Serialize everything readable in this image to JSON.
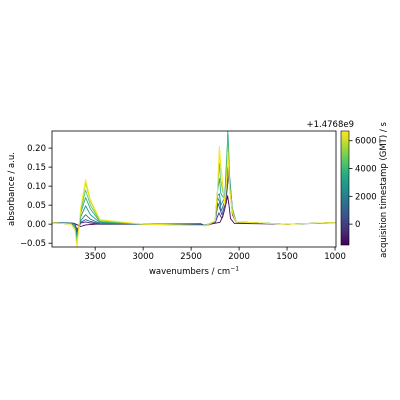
{
  "chart_data": {
    "type": "line",
    "xlabel": "wavenumbers / cm",
    "xlabel_superscript": "−1",
    "ylabel": "absorbance / a.u.",
    "xlim": [
      3950,
      990
    ],
    "ylim": [
      -0.06,
      0.245
    ],
    "x_ticks": [
      3500,
      3000,
      2500,
      2000,
      1500,
      1000
    ],
    "y_ticks": [
      -0.05,
      0.0,
      0.05,
      0.1,
      0.15,
      0.2
    ],
    "x_tick_labels": [
      "3500",
      "3000",
      "2500",
      "2000",
      "1500",
      "1000"
    ],
    "y_tick_labels": [
      "−0.05",
      "0.00",
      "0.05",
      "0.10",
      "0.15",
      "0.20"
    ],
    "grid": false,
    "series": [
      {
        "color": "#440154",
        "points": [
          [
            3950,
            0.003
          ],
          [
            3750,
            0.002
          ],
          [
            3700,
            0.0
          ],
          [
            3650,
            -0.006
          ],
          [
            3600,
            -0.002
          ],
          [
            3500,
            0.0
          ],
          [
            3000,
            0.0
          ],
          [
            2400,
            0.001
          ],
          [
            2350,
            -0.004
          ],
          [
            2300,
            0.0
          ],
          [
            2200,
            0.005
          ],
          [
            2170,
            0.02
          ],
          [
            2140,
            0.05
          ],
          [
            2120,
            0.075
          ],
          [
            2105,
            0.05
          ],
          [
            2090,
            0.015
          ],
          [
            2050,
            0.002
          ],
          [
            1500,
            0.0
          ],
          [
            1050,
            0.003
          ],
          [
            990,
            0.003
          ]
        ]
      },
      {
        "color": "#472d7b",
        "points": [
          [
            3950,
            0.004
          ],
          [
            3750,
            0.003
          ],
          [
            3710,
            0.002
          ],
          [
            3690,
            -0.015
          ],
          [
            3650,
            0.003
          ],
          [
            3600,
            0.006
          ],
          [
            3550,
            0.003
          ],
          [
            3450,
            0.0
          ],
          [
            3000,
            0.0
          ],
          [
            2350,
            -0.002
          ],
          [
            2250,
            0.003
          ],
          [
            2210,
            0.03
          ],
          [
            2180,
            0.015
          ],
          [
            2150,
            0.04
          ],
          [
            2125,
            0.09
          ],
          [
            2110,
            0.13
          ],
          [
            2095,
            0.09
          ],
          [
            2070,
            0.025
          ],
          [
            2030,
            0.005
          ],
          [
            1500,
            0.0
          ],
          [
            1050,
            0.004
          ],
          [
            990,
            0.003
          ]
        ]
      },
      {
        "color": "#3b528b",
        "points": [
          [
            3950,
            0.004
          ],
          [
            3750,
            0.003
          ],
          [
            3710,
            0.0
          ],
          [
            3690,
            -0.02
          ],
          [
            3650,
            0.005
          ],
          [
            3600,
            0.012
          ],
          [
            3550,
            0.007
          ],
          [
            3450,
            0.001
          ],
          [
            3000,
            0.0
          ],
          [
            2350,
            -0.002
          ],
          [
            2250,
            0.005
          ],
          [
            2220,
            0.055
          ],
          [
            2200,
            0.04
          ],
          [
            2180,
            0.025
          ],
          [
            2150,
            0.05
          ],
          [
            2130,
            0.1
          ],
          [
            2115,
            0.15
          ],
          [
            2100,
            0.1
          ],
          [
            2070,
            0.03
          ],
          [
            2030,
            0.006
          ],
          [
            1500,
            0.0
          ],
          [
            1050,
            0.004
          ],
          [
            990,
            0.003
          ]
        ]
      },
      {
        "color": "#2c728e",
        "points": [
          [
            3950,
            0.004
          ],
          [
            3750,
            0.003
          ],
          [
            3710,
            0.0
          ],
          [
            3690,
            -0.028
          ],
          [
            3650,
            0.01
          ],
          [
            3600,
            0.025
          ],
          [
            3550,
            0.013
          ],
          [
            3450,
            0.002
          ],
          [
            3000,
            0.0
          ],
          [
            2350,
            -0.003
          ],
          [
            2250,
            0.007
          ],
          [
            2225,
            0.07
          ],
          [
            2205,
            0.06
          ],
          [
            2185,
            0.035
          ],
          [
            2150,
            0.06
          ],
          [
            2130,
            0.14
          ],
          [
            2115,
            0.2
          ],
          [
            2100,
            0.12
          ],
          [
            2070,
            0.035
          ],
          [
            2030,
            0.006
          ],
          [
            1500,
            0.0
          ],
          [
            1050,
            0.004
          ],
          [
            990,
            0.003
          ]
        ]
      },
      {
        "color": "#21918c",
        "points": [
          [
            3950,
            0.004
          ],
          [
            3750,
            0.002
          ],
          [
            3710,
            -0.005
          ],
          [
            3690,
            -0.038
          ],
          [
            3650,
            0.02
          ],
          [
            3600,
            0.048
          ],
          [
            3550,
            0.025
          ],
          [
            3450,
            0.004
          ],
          [
            3000,
            0.0
          ],
          [
            2350,
            -0.003
          ],
          [
            2250,
            0.008
          ],
          [
            2225,
            0.075
          ],
          [
            2205,
            0.08
          ],
          [
            2190,
            0.05
          ],
          [
            2150,
            0.07
          ],
          [
            2130,
            0.17
          ],
          [
            2115,
            0.235
          ],
          [
            2100,
            0.13
          ],
          [
            2070,
            0.04
          ],
          [
            2030,
            0.006
          ],
          [
            1500,
            0.0
          ],
          [
            1050,
            0.004
          ],
          [
            990,
            0.003
          ]
        ]
      },
      {
        "color": "#28ae80",
        "points": [
          [
            3950,
            0.004
          ],
          [
            3750,
            0.0
          ],
          [
            3710,
            -0.01
          ],
          [
            3690,
            -0.045
          ],
          [
            3650,
            0.03
          ],
          [
            3600,
            0.07
          ],
          [
            3550,
            0.04
          ],
          [
            3450,
            0.006
          ],
          [
            3000,
            0.0
          ],
          [
            2350,
            -0.003
          ],
          [
            2250,
            0.008
          ],
          [
            2225,
            0.085
          ],
          [
            2205,
            0.12
          ],
          [
            2190,
            0.08
          ],
          [
            2150,
            0.065
          ],
          [
            2130,
            0.15
          ],
          [
            2118,
            0.245
          ],
          [
            2100,
            0.12
          ],
          [
            2070,
            0.04
          ],
          [
            2030,
            0.006
          ],
          [
            1500,
            0.0
          ],
          [
            1050,
            0.004
          ],
          [
            990,
            0.003
          ]
        ]
      },
      {
        "color": "#5ec962",
        "points": [
          [
            3950,
            0.004
          ],
          [
            3750,
            0.0
          ],
          [
            3710,
            -0.012
          ],
          [
            3690,
            -0.05
          ],
          [
            3650,
            0.035
          ],
          [
            3600,
            0.09
          ],
          [
            3550,
            0.05
          ],
          [
            3450,
            0.008
          ],
          [
            3000,
            0.0
          ],
          [
            2350,
            -0.004
          ],
          [
            2250,
            0.008
          ],
          [
            2225,
            0.09
          ],
          [
            2205,
            0.16
          ],
          [
            2195,
            0.12
          ],
          [
            2150,
            0.06
          ],
          [
            2130,
            0.13
          ],
          [
            2118,
            0.225
          ],
          [
            2100,
            0.11
          ],
          [
            2070,
            0.035
          ],
          [
            2030,
            0.006
          ],
          [
            1500,
            0.0
          ],
          [
            1050,
            0.004
          ],
          [
            990,
            0.003
          ]
        ]
      },
      {
        "color": "#addc30",
        "points": [
          [
            3950,
            0.004
          ],
          [
            3750,
            0.0
          ],
          [
            3710,
            -0.015
          ],
          [
            3690,
            -0.057
          ],
          [
            3650,
            0.04
          ],
          [
            3600,
            0.108
          ],
          [
            3550,
            0.06
          ],
          [
            3450,
            0.01
          ],
          [
            3000,
            0.0
          ],
          [
            2350,
            -0.004
          ],
          [
            2250,
            0.008
          ],
          [
            2225,
            0.09
          ],
          [
            2205,
            0.2
          ],
          [
            2195,
            0.16
          ],
          [
            2150,
            0.055
          ],
          [
            2130,
            0.12
          ],
          [
            2118,
            0.2
          ],
          [
            2100,
            0.1
          ],
          [
            2070,
            0.03
          ],
          [
            2030,
            0.006
          ],
          [
            1500,
            0.0
          ],
          [
            1050,
            0.004
          ],
          [
            990,
            0.003
          ]
        ]
      },
      {
        "color": "#fde725",
        "points": [
          [
            3950,
            0.004
          ],
          [
            3750,
            0.0
          ],
          [
            3710,
            -0.015
          ],
          [
            3690,
            -0.06
          ],
          [
            3650,
            0.045
          ],
          [
            3600,
            0.118
          ],
          [
            3550,
            0.065
          ],
          [
            3450,
            0.012
          ],
          [
            3000,
            0.0
          ],
          [
            2350,
            -0.004
          ],
          [
            2250,
            0.008
          ],
          [
            2225,
            0.085
          ],
          [
            2205,
            0.205
          ],
          [
            2195,
            0.17
          ],
          [
            2150,
            0.05
          ],
          [
            2130,
            0.11
          ],
          [
            2118,
            0.19
          ],
          [
            2100,
            0.095
          ],
          [
            2070,
            0.03
          ],
          [
            2030,
            0.006
          ],
          [
            1500,
            0.0
          ],
          [
            1050,
            0.004
          ],
          [
            990,
            0.003
          ]
        ]
      }
    ],
    "colorbar": {
      "label": "acquisition timestamp (GMT) / s",
      "offset_label": "+1.4768e9",
      "range": [
        -1500,
        6700
      ],
      "ticks": [
        0,
        2000,
        4000,
        6000
      ],
      "tick_labels": [
        "0",
        "2000",
        "4000",
        "6000"
      ],
      "colormap": [
        "#440154",
        "#472d7b",
        "#3b528b",
        "#2c728e",
        "#21918c",
        "#28ae80",
        "#5ec962",
        "#addc30",
        "#fde725"
      ]
    }
  }
}
